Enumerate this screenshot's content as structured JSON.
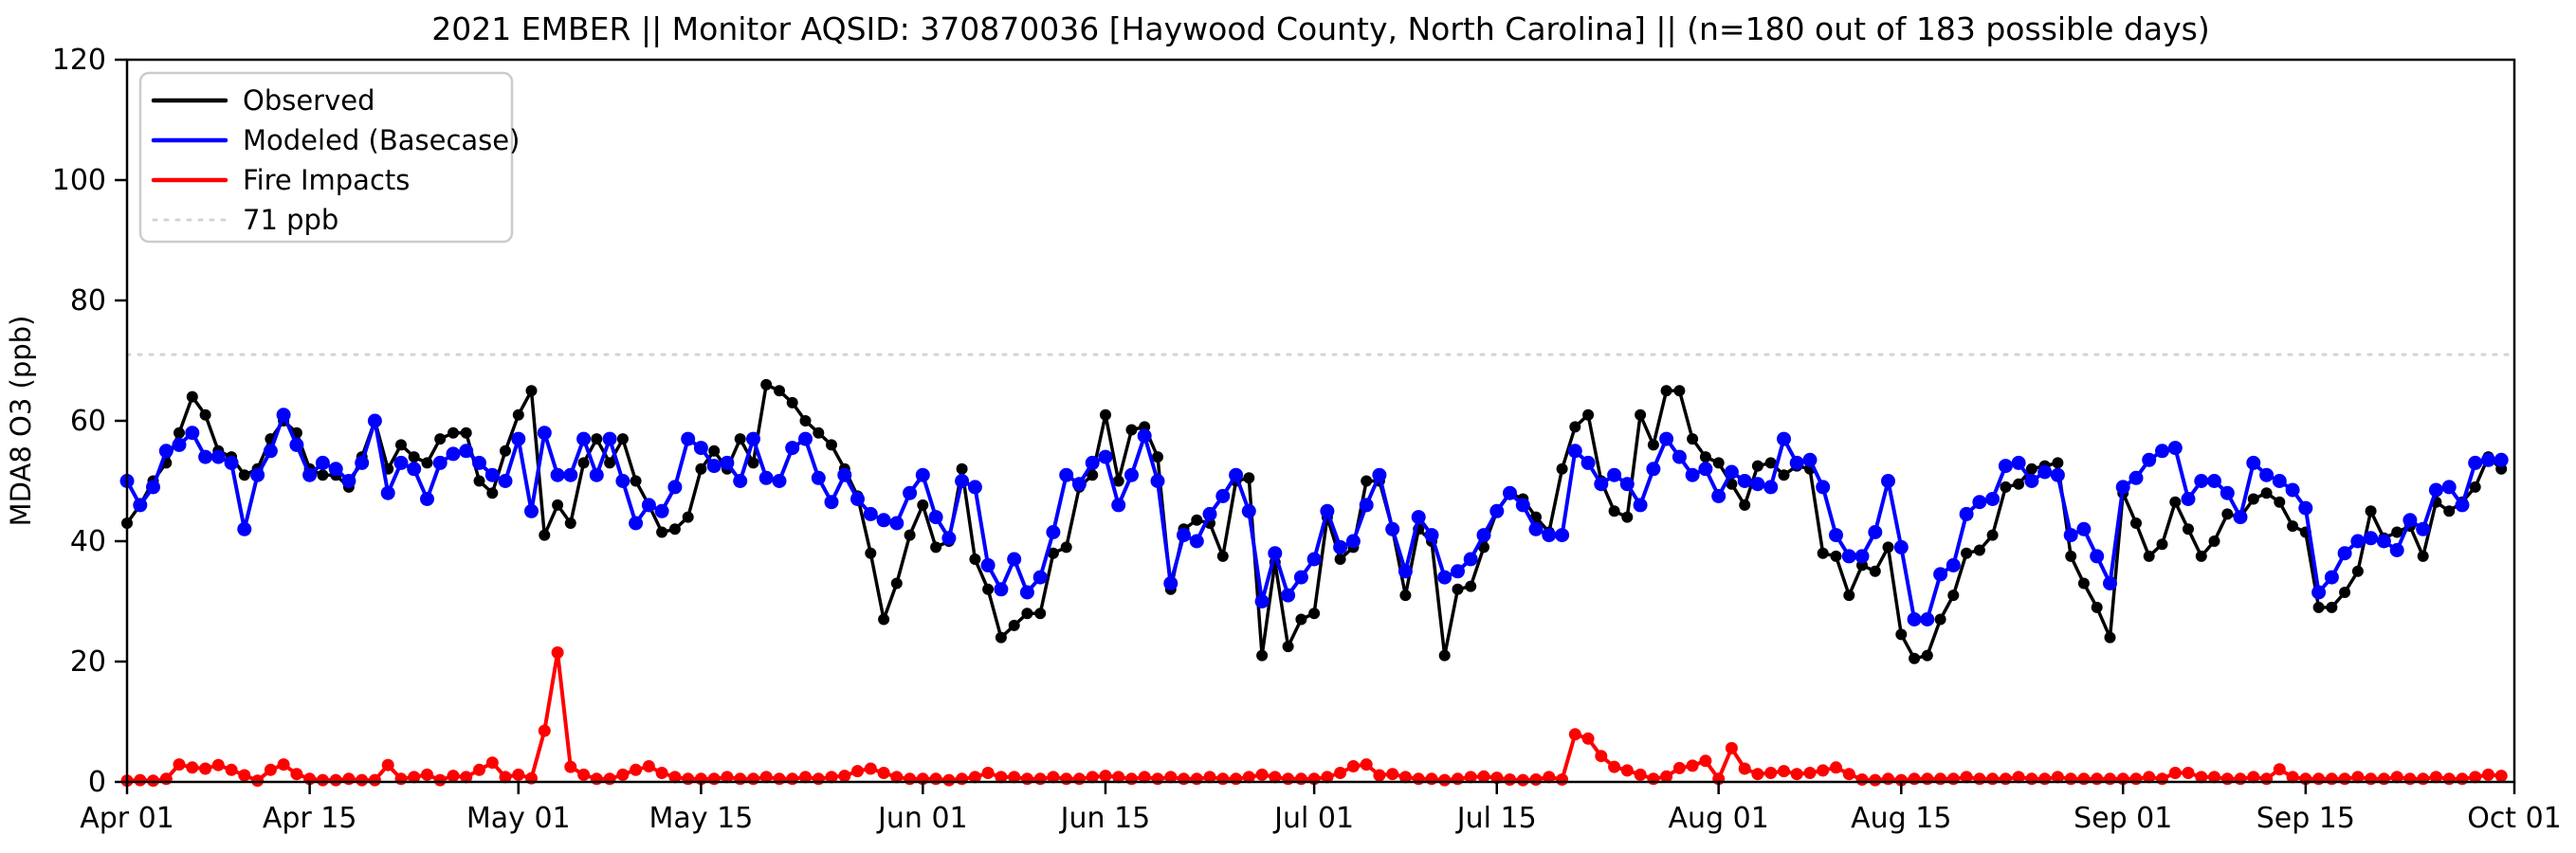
{
  "figure": {
    "title": "2021 EMBER || Monitor AQSID: 370870036 [Haywood County, North Carolina] || (n=180 out of 183 possible days)",
    "ylabel": "MDA8 O3 (ppb)"
  },
  "chart_data": {
    "type": "line",
    "title": "2021 EMBER || Monitor AQSID: 370870036 [Haywood County, North Carolina] || (n=180 out of 183 possible days)",
    "xlabel": "",
    "ylabel": "MDA8 O3 (ppb)",
    "x_start_date": "2021-04-01",
    "n_days": 183,
    "ylim": [
      0,
      120
    ],
    "yticks": [
      0,
      20,
      40,
      60,
      80,
      100,
      120
    ],
    "xticks": [
      {
        "day": 0,
        "label": "Apr 01"
      },
      {
        "day": 14,
        "label": "Apr 15"
      },
      {
        "day": 30,
        "label": "May 01"
      },
      {
        "day": 44,
        "label": "May 15"
      },
      {
        "day": 61,
        "label": "Jun 01"
      },
      {
        "day": 75,
        "label": "Jun 15"
      },
      {
        "day": 91,
        "label": "Jul 01"
      },
      {
        "day": 105,
        "label": "Jul 15"
      },
      {
        "day": 122,
        "label": "Aug 01"
      },
      {
        "day": 136,
        "label": "Aug 15"
      },
      {
        "day": 153,
        "label": "Sep 01"
      },
      {
        "day": 167,
        "label": "Sep 15"
      },
      {
        "day": 183,
        "label": "Oct 01"
      }
    ],
    "grid": false,
    "legend_position": "upper-left",
    "threshold": {
      "value": 71,
      "label": "71 ppb",
      "color": "#d3d3d3",
      "style": "dotted"
    },
    "series": [
      {
        "name": "Observed",
        "color": "#000000",
        "marker": "circle",
        "values": [
          43,
          46,
          50,
          53,
          58,
          64,
          61,
          55,
          54,
          51,
          52,
          57,
          60,
          58,
          52,
          51,
          51,
          49,
          54,
          60,
          52,
          56,
          54,
          53,
          57,
          58,
          58,
          50,
          48,
          55,
          61,
          65,
          41,
          46,
          43,
          53,
          57,
          53,
          57,
          50,
          46,
          41.5,
          42,
          44,
          52,
          55,
          52,
          57,
          53,
          66,
          65,
          63,
          60,
          58,
          56,
          52,
          47.5,
          38,
          27,
          33,
          41,
          46,
          39,
          40,
          52,
          37,
          32,
          24,
          26,
          28,
          28,
          38,
          39,
          49,
          51,
          61,
          50,
          58.5,
          59,
          54,
          32,
          42,
          43.5,
          43,
          37.5,
          50,
          50.5,
          21,
          36.5,
          22.5,
          27,
          28,
          44,
          37,
          39,
          50,
          50,
          42,
          31,
          42,
          40,
          21,
          32,
          32.5,
          39,
          45,
          48,
          47,
          44,
          41.5,
          52,
          59,
          61,
          50,
          45,
          44,
          61,
          56,
          65,
          65,
          57,
          54,
          53,
          49.5,
          46,
          52.5,
          53,
          51,
          52.5,
          52,
          38,
          37.5,
          31,
          36,
          35,
          39,
          24.5,
          20.5,
          21,
          27,
          31,
          38,
          38.5,
          41,
          49,
          49.5,
          52,
          52.5,
          53,
          37.5,
          33,
          29,
          24,
          48,
          43,
          37.5,
          39.5,
          46.5,
          42,
          37.5,
          40,
          44.5,
          44,
          47,
          48,
          46.5,
          42.5,
          41.5,
          29,
          29,
          31.5,
          35,
          45,
          40.5,
          41.5,
          42.5,
          37.5,
          46.5,
          45,
          46.5,
          49,
          54,
          52
        ]
      },
      {
        "name": "Modeled (Basecase)",
        "color": "#0000ff",
        "marker": "circle",
        "values": [
          50,
          46,
          49,
          55,
          56,
          58,
          54,
          54,
          53,
          42,
          51,
          55,
          61,
          56,
          51,
          53,
          52,
          50,
          53,
          60,
          48,
          53,
          52,
          47,
          53,
          54.5,
          55,
          53,
          51,
          50,
          57,
          45,
          58,
          51,
          51,
          57,
          51,
          57,
          50,
          43,
          46,
          45,
          49,
          57,
          55.5,
          52.5,
          53,
          50,
          57,
          50.5,
          50,
          55.5,
          57,
          50.5,
          46.5,
          51,
          47,
          44.5,
          43.5,
          43,
          48,
          51,
          44,
          40.5,
          50,
          49,
          36,
          32,
          37,
          31.5,
          34,
          41.5,
          51,
          49.5,
          53,
          54,
          46,
          51,
          57.5,
          50,
          33,
          41,
          40,
          44.5,
          47.5,
          51,
          45,
          30,
          38,
          31,
          34,
          37,
          45,
          39,
          40,
          46,
          51,
          42,
          35,
          44,
          41,
          34,
          35,
          37,
          41,
          45,
          48,
          46,
          42,
          41,
          41,
          55,
          53,
          49.5,
          51,
          49.5,
          46,
          52,
          57,
          54,
          51,
          52,
          47.5,
          51.5,
          50,
          49.5,
          49,
          57,
          53,
          53.5,
          49,
          41,
          37.5,
          37.5,
          41.5,
          50,
          39,
          27,
          27,
          34.5,
          36,
          44.5,
          46.5,
          47,
          52.5,
          53,
          50,
          51.5,
          51,
          41,
          42,
          37.5,
          33,
          49,
          50.5,
          53.5,
          55,
          55.5,
          47,
          50,
          50,
          48,
          44,
          53,
          51,
          50,
          48.5,
          45.5,
          31.5,
          34,
          38,
          40,
          40.5,
          40,
          38.5,
          43.5,
          42,
          48.5,
          49,
          46,
          53,
          53.5,
          53.5
        ]
      },
      {
        "name": "Fire Impacts",
        "color": "#ff0000",
        "marker": "circle",
        "values": [
          0.2,
          0.3,
          0.2,
          0.5,
          2.9,
          2.4,
          2.2,
          2.8,
          2,
          1.1,
          0.2,
          2,
          2.9,
          1.3,
          0.5,
          0.3,
          0.3,
          0.5,
          0.3,
          0.3,
          2.8,
          0.5,
          0.8,
          1.2,
          0.3,
          1,
          0.8,
          2,
          3.2,
          0.8,
          1.2,
          0.6,
          8.5,
          21.5,
          2.5,
          1.2,
          0.5,
          0.5,
          1.2,
          2,
          2.6,
          1.5,
          0.8,
          0.5,
          0.5,
          0.5,
          0.8,
          0.5,
          0.5,
          0.8,
          0.5,
          0.5,
          0.8,
          0.5,
          0.8,
          1,
          1.8,
          2.2,
          1.5,
          0.8,
          0.5,
          0.5,
          0.5,
          0.3,
          0.5,
          0.8,
          1.5,
          0.8,
          0.8,
          0.5,
          0.5,
          0.8,
          0.5,
          0.5,
          0.8,
          1,
          0.8,
          0.5,
          0.8,
          0.5,
          0.8,
          0.5,
          0.5,
          0.8,
          0.5,
          0.5,
          0.8,
          1.2,
          0.8,
          0.5,
          0.5,
          0.5,
          0.8,
          1.5,
          2.6,
          2.9,
          1.1,
          1.3,
          0.8,
          0.5,
          0.5,
          0.3,
          0.5,
          0.8,
          0.9,
          0.7,
          0.4,
          0.3,
          0.4,
          0.8,
          0.4,
          7.9,
          7.2,
          4.3,
          2.5,
          1.9,
          1.2,
          0.5,
          0.9,
          2.3,
          2.7,
          3.5,
          0.5,
          5.6,
          2.2,
          1.3,
          1.5,
          1.8,
          1.3,
          1.5,
          1.9,
          2.4,
          1.3,
          0.4,
          0.3,
          0.5,
          0.3,
          0.5,
          0.5,
          0.5,
          0.5,
          0.8,
          0.5,
          0.5,
          0.5,
          0.8,
          0.5,
          0.5,
          0.8,
          0.5,
          0.5,
          0.5,
          0.5,
          0.5,
          0.5,
          0.8,
          0.5,
          1.5,
          1.5,
          0.8,
          0.8,
          0.5,
          0.5,
          0.8,
          0.5,
          2.1,
          0.8,
          0.5,
          0.5,
          0.5,
          0.5,
          0.8,
          0.5,
          0.5,
          0.8,
          0.5,
          0.5,
          0.8,
          0.5,
          0.5,
          0.8,
          1.2,
          1
        ]
      }
    ],
    "legend_entries": [
      "Observed",
      "Modeled (Basecase)",
      "Fire Impacts",
      "71 ppb"
    ]
  }
}
